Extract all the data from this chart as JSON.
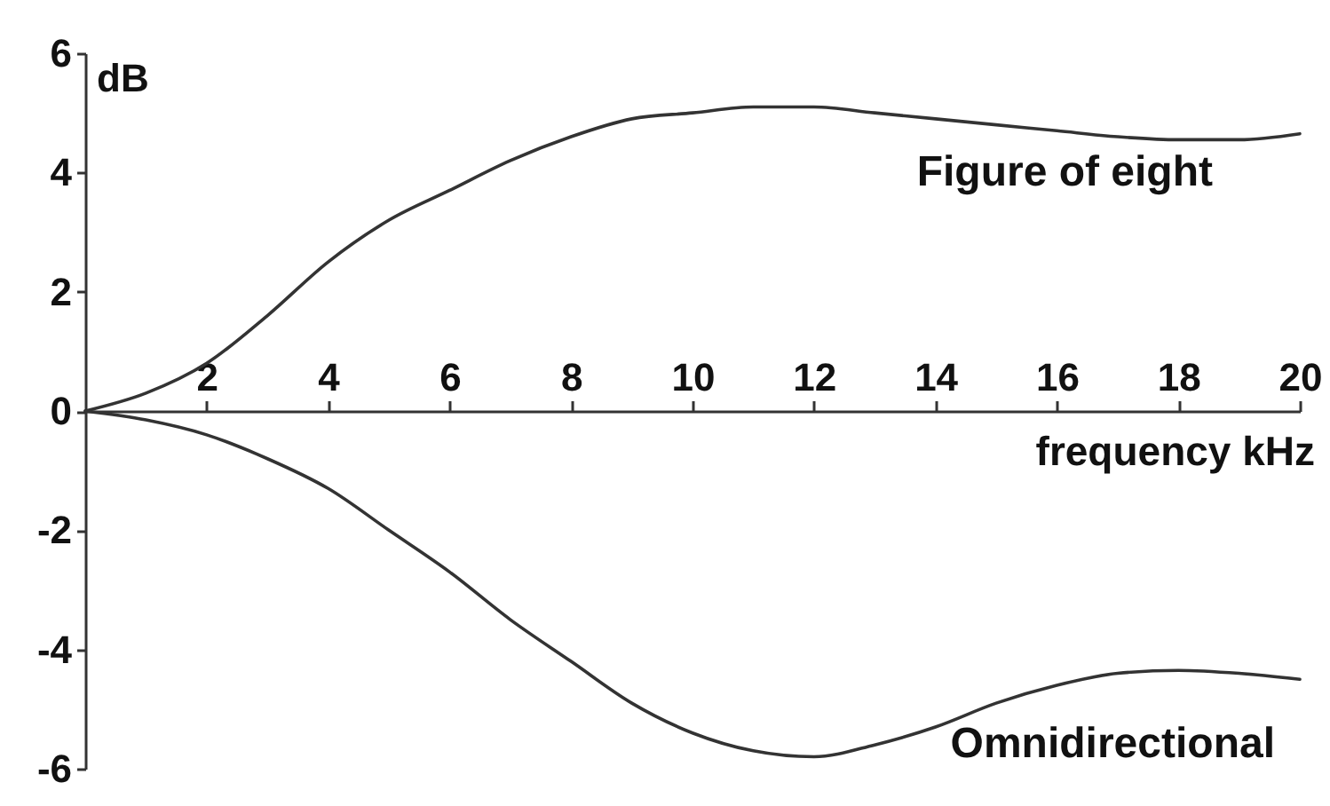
{
  "chart_data": {
    "type": "line",
    "xlabel": "frequency kHz",
    "ylabel": "dB",
    "x": [
      0,
      1,
      2,
      3,
      4,
      5,
      6,
      7,
      8,
      9,
      10,
      11,
      12,
      13,
      14,
      15,
      16,
      17,
      18,
      19,
      20
    ],
    "series": [
      {
        "name": "Figure of eight",
        "color": "#333333",
        "values": [
          0,
          0.3,
          0.8,
          1.6,
          2.5,
          3.2,
          3.7,
          4.2,
          4.6,
          4.9,
          5.0,
          5.1,
          5.1,
          5.0,
          4.9,
          4.8,
          4.7,
          4.6,
          4.55,
          4.55,
          4.65
        ]
      },
      {
        "name": "Omnidirectional",
        "color": "#333333",
        "values": [
          0,
          -0.15,
          -0.4,
          -0.8,
          -1.3,
          -2.0,
          -2.7,
          -3.5,
          -4.2,
          -4.9,
          -5.4,
          -5.7,
          -5.8,
          -5.6,
          -5.3,
          -4.9,
          -4.6,
          -4.4,
          -4.35,
          -4.4,
          -4.5
        ]
      }
    ],
    "xlim": [
      0,
      20
    ],
    "ylim": [
      -6,
      6
    ],
    "xticks": [
      2,
      4,
      6,
      8,
      10,
      12,
      14,
      16,
      18,
      20
    ],
    "yticks": [
      -6,
      -4,
      -2,
      0,
      2,
      4,
      6
    ]
  }
}
